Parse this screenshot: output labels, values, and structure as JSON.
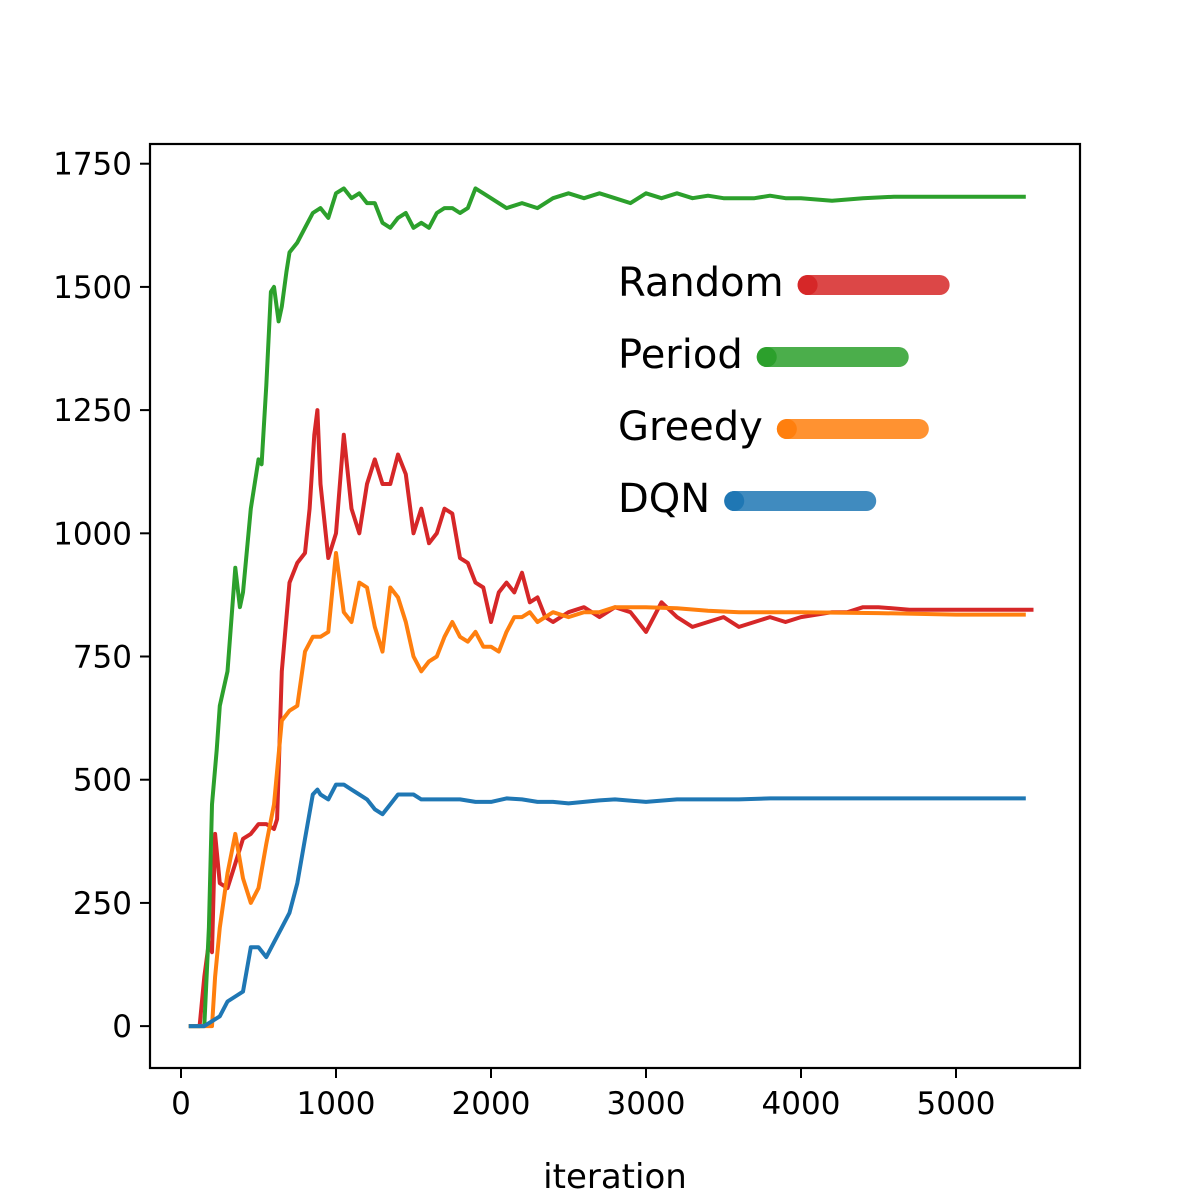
{
  "chart_data": {
    "type": "line",
    "title": "",
    "xlabel": "iteration",
    "ylabel": "",
    "xlim": [
      -200,
      5800
    ],
    "ylim": [
      -85,
      1790
    ],
    "xticks": [
      0,
      1000,
      2000,
      3000,
      4000,
      5000
    ],
    "yticks": [
      0,
      250,
      500,
      750,
      1000,
      1250,
      1500,
      1750
    ],
    "grid": false,
    "legend_position": "upper-right",
    "series": [
      {
        "name": "Random",
        "color": "#d62728",
        "x": [
          50,
          120,
          150,
          180,
          200,
          220,
          250,
          300,
          350,
          400,
          450,
          500,
          550,
          600,
          620,
          650,
          700,
          750,
          800,
          830,
          860,
          880,
          900,
          950,
          1000,
          1050,
          1100,
          1150,
          1200,
          1250,
          1300,
          1350,
          1400,
          1450,
          1500,
          1550,
          1600,
          1650,
          1700,
          1750,
          1800,
          1850,
          1900,
          1950,
          2000,
          2050,
          2100,
          2150,
          2200,
          2250,
          2300,
          2350,
          2400,
          2450,
          2500,
          2600,
          2700,
          2800,
          2900,
          3000,
          3100,
          3200,
          3300,
          3400,
          3500,
          3600,
          3700,
          3800,
          3900,
          4000,
          4200,
          4300,
          4400,
          4500,
          4700,
          5000,
          5300,
          5500
        ],
        "y": [
          0,
          0,
          100,
          170,
          150,
          390,
          290,
          280,
          330,
          380,
          390,
          410,
          410,
          400,
          420,
          720,
          900,
          940,
          960,
          1050,
          1200,
          1250,
          1100,
          950,
          1000,
          1200,
          1050,
          1000,
          1100,
          1150,
          1100,
          1100,
          1160,
          1120,
          1000,
          1050,
          980,
          1000,
          1050,
          1040,
          950,
          940,
          900,
          890,
          820,
          880,
          900,
          880,
          920,
          860,
          870,
          830,
          820,
          830,
          840,
          850,
          830,
          850,
          840,
          800,
          860,
          830,
          810,
          820,
          830,
          810,
          820,
          830,
          820,
          830,
          840,
          840,
          850,
          850,
          845,
          845,
          845,
          845
        ]
      },
      {
        "name": "Period",
        "color": "#2ca02c",
        "x": [
          50,
          150,
          180,
          200,
          230,
          250,
          300,
          350,
          380,
          400,
          450,
          500,
          520,
          550,
          580,
          600,
          630,
          650,
          680,
          700,
          750,
          800,
          850,
          900,
          950,
          1000,
          1050,
          1100,
          1150,
          1200,
          1250,
          1300,
          1350,
          1400,
          1450,
          1500,
          1550,
          1600,
          1650,
          1700,
          1750,
          1800,
          1850,
          1900,
          1950,
          2000,
          2100,
          2200,
          2300,
          2400,
          2500,
          2600,
          2700,
          2800,
          2900,
          3000,
          3100,
          3200,
          3300,
          3400,
          3500,
          3600,
          3700,
          3800,
          3900,
          4000,
          4200,
          4400,
          4600,
          4800,
          5000,
          5200,
          5450
        ],
        "y": [
          0,
          0,
          200,
          450,
          560,
          650,
          720,
          930,
          850,
          880,
          1050,
          1150,
          1140,
          1300,
          1490,
          1500,
          1430,
          1460,
          1530,
          1570,
          1590,
          1620,
          1650,
          1660,
          1640,
          1690,
          1700,
          1680,
          1690,
          1670,
          1670,
          1630,
          1620,
          1640,
          1650,
          1620,
          1630,
          1620,
          1650,
          1660,
          1660,
          1650,
          1660,
          1700,
          1690,
          1680,
          1660,
          1670,
          1660,
          1680,
          1690,
          1680,
          1690,
          1680,
          1670,
          1690,
          1680,
          1690,
          1680,
          1685,
          1680,
          1680,
          1680,
          1685,
          1680,
          1680,
          1675,
          1680,
          1683,
          1683,
          1683,
          1683,
          1683
        ]
      },
      {
        "name": "Greedy",
        "color": "#ff7f0e",
        "x": [
          50,
          200,
          220,
          250,
          300,
          350,
          400,
          450,
          500,
          550,
          600,
          650,
          700,
          750,
          800,
          850,
          900,
          950,
          1000,
          1050,
          1100,
          1150,
          1200,
          1250,
          1300,
          1350,
          1400,
          1450,
          1500,
          1550,
          1600,
          1650,
          1700,
          1750,
          1800,
          1850,
          1900,
          1950,
          2000,
          2050,
          2100,
          2150,
          2200,
          2250,
          2300,
          2400,
          2500,
          2600,
          2700,
          2800,
          3000,
          3200,
          3400,
          3600,
          3800,
          4000,
          4500,
          5000,
          5450
        ],
        "y": [
          0,
          0,
          100,
          200,
          310,
          390,
          300,
          250,
          280,
          370,
          450,
          620,
          640,
          650,
          760,
          790,
          790,
          800,
          960,
          840,
          820,
          900,
          890,
          810,
          760,
          890,
          870,
          820,
          750,
          720,
          740,
          750,
          790,
          820,
          790,
          780,
          800,
          770,
          770,
          760,
          800,
          830,
          830,
          840,
          820,
          840,
          830,
          840,
          840,
          850,
          850,
          848,
          843,
          840,
          840,
          840,
          838,
          835,
          835
        ]
      },
      {
        "name": "DQN",
        "color": "#1f77b4",
        "x": [
          50,
          150,
          250,
          300,
          350,
          400,
          450,
          500,
          550,
          600,
          650,
          700,
          750,
          800,
          850,
          880,
          900,
          950,
          1000,
          1050,
          1100,
          1150,
          1200,
          1250,
          1300,
          1350,
          1400,
          1450,
          1500,
          1550,
          1600,
          1700,
          1800,
          1900,
          2000,
          2100,
          2200,
          2300,
          2400,
          2500,
          2600,
          2700,
          2800,
          3000,
          3200,
          3400,
          3600,
          3800,
          4000,
          4500,
          5000,
          5450
        ],
        "y": [
          0,
          0,
          20,
          50,
          60,
          70,
          160,
          160,
          140,
          170,
          200,
          230,
          290,
          380,
          470,
          480,
          470,
          460,
          490,
          490,
          480,
          470,
          460,
          440,
          430,
          450,
          470,
          470,
          470,
          460,
          460,
          460,
          460,
          455,
          455,
          462,
          460,
          455,
          455,
          452,
          455,
          458,
          460,
          455,
          460,
          460,
          460,
          462,
          462,
          462,
          462,
          462
        ]
      }
    ]
  }
}
